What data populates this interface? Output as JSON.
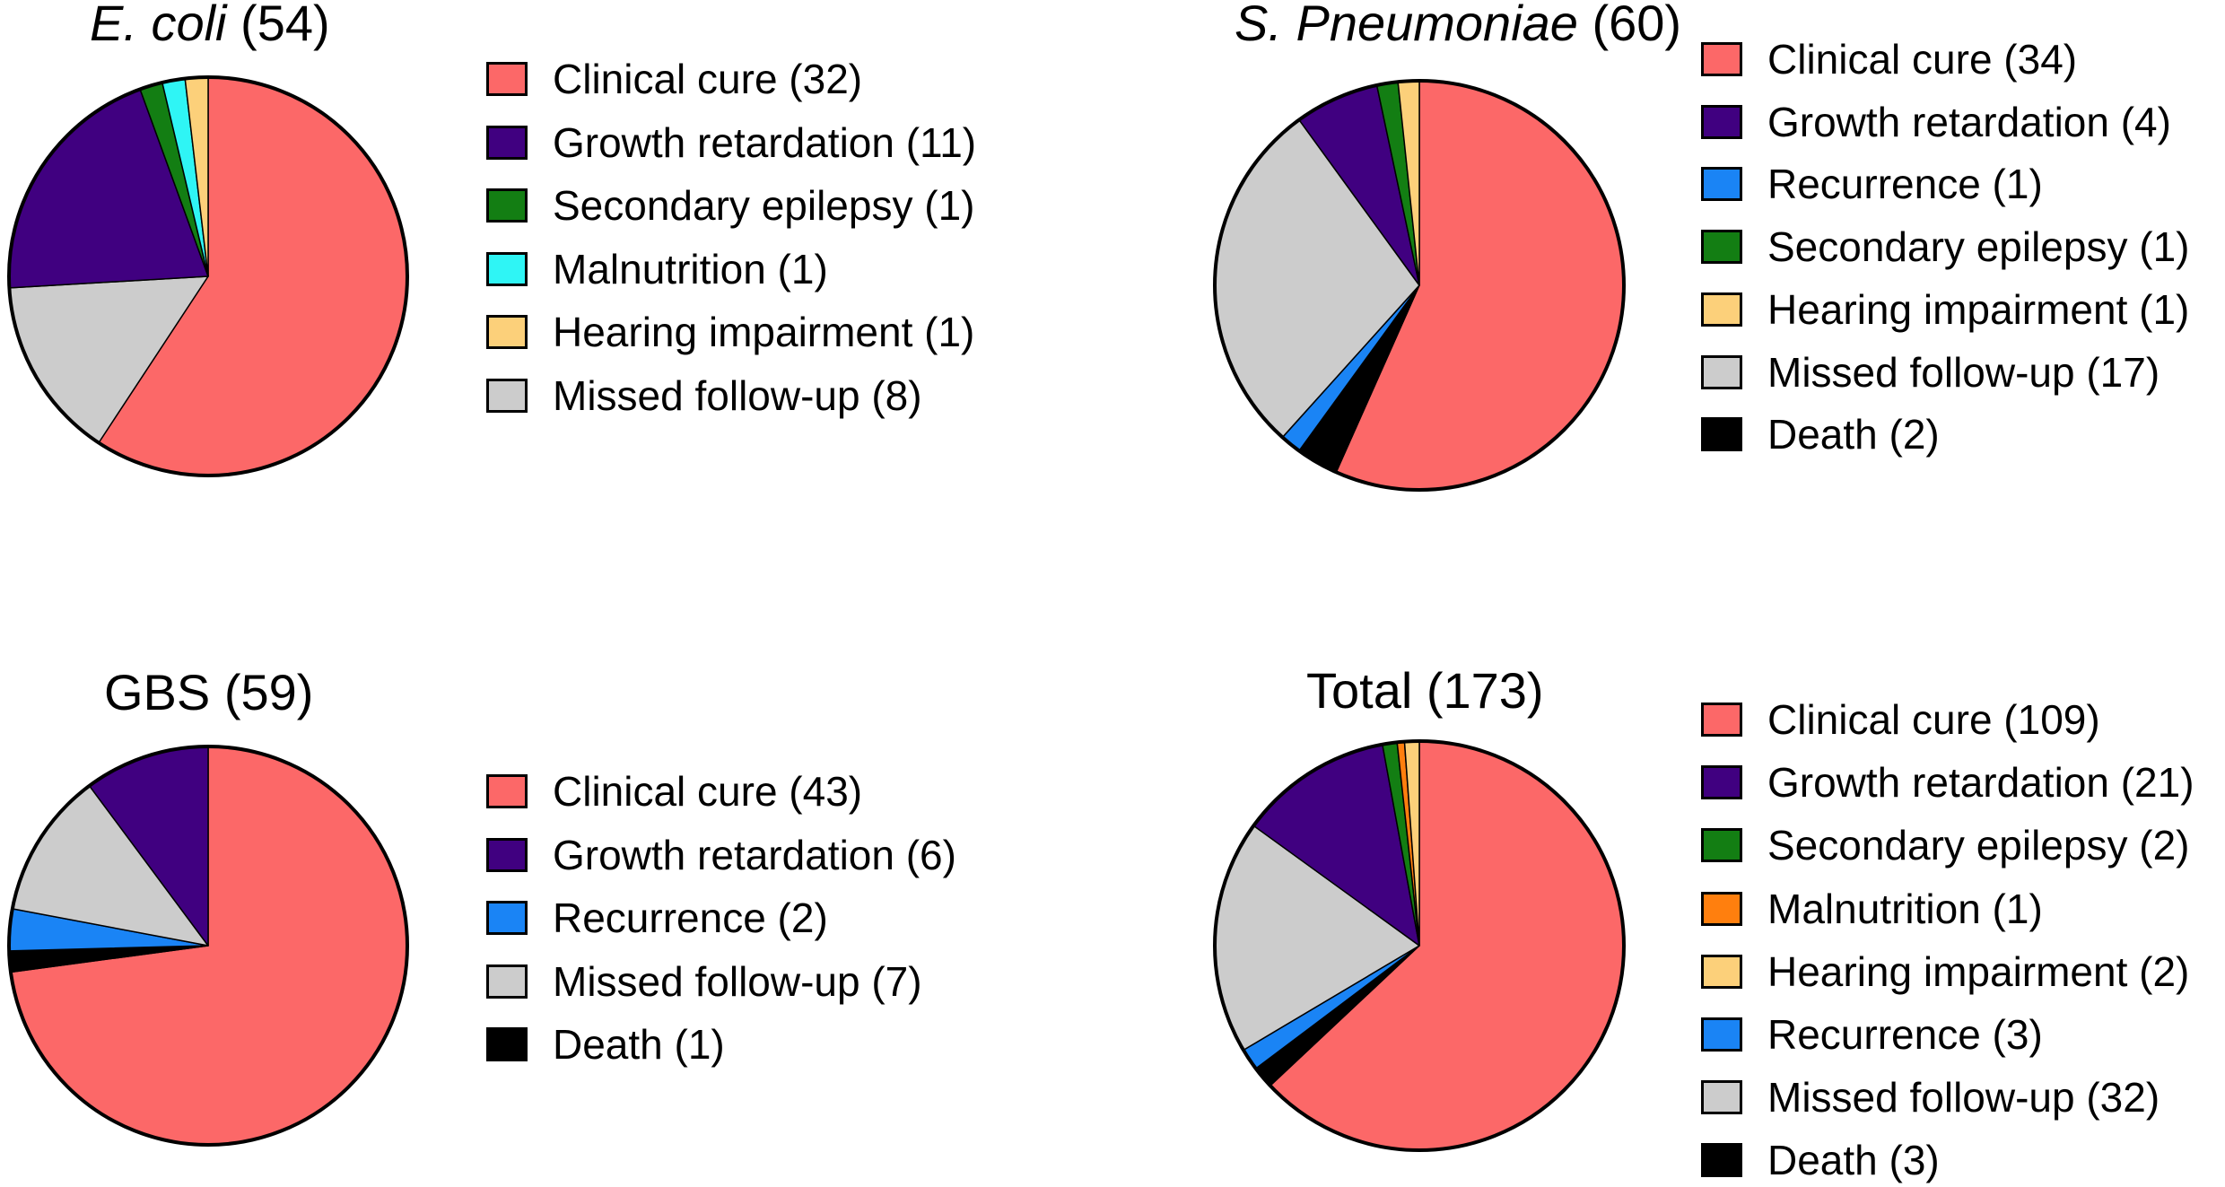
{
  "colors": {
    "clinical_cure": "#fc6868",
    "growth_retardation": "#400080",
    "secondary_epilepsy": "#137e13",
    "malnutrition_ecoli": "#2ff5f5",
    "malnutrition_total": "#ff7f0e",
    "hearing_impairment": "#fcd07a",
    "recurrence": "#1a84f5",
    "missed_follow_up": "#cccccc",
    "death": "#000000",
    "outline": "#000000"
  },
  "chart_data": [
    {
      "type": "pie",
      "title_italic": "E. coli",
      "title_rest": " (54)",
      "total": 54,
      "slices": [
        {
          "label": "Clinical cure (32)",
          "value": 32,
          "color": "#fc6868"
        },
        {
          "label": "Missed follow-up (8)",
          "value": 8,
          "color": "#cccccc"
        },
        {
          "label": "Growth retardation (11)",
          "value": 11,
          "color": "#400080"
        },
        {
          "label": "Secondary epilepsy (1)",
          "value": 1,
          "color": "#137e13"
        },
        {
          "label": "Malnutrition (1)",
          "value": 1,
          "color": "#2ff5f5"
        },
        {
          "label": "Hearing impairment (1)",
          "value": 1,
          "color": "#fcd07a"
        }
      ],
      "legend": [
        {
          "label": "Clinical cure (32)",
          "color": "#fc6868"
        },
        {
          "label": "Growth retardation (11)",
          "color": "#400080"
        },
        {
          "label": "Secondary epilepsy (1)",
          "color": "#137e13"
        },
        {
          "label": "Malnutrition (1)",
          "color": "#2ff5f5"
        },
        {
          "label": "Hearing impairment (1)",
          "color": "#fcd07a"
        },
        {
          "label": "Missed follow-up (8)",
          "color": "#cccccc"
        }
      ]
    },
    {
      "type": "pie",
      "title_italic": "S. Pneumoniae",
      "title_rest": " (60)",
      "total": 60,
      "slices": [
        {
          "label": "Clinical cure (34)",
          "value": 34,
          "color": "#fc6868"
        },
        {
          "label": "Death (2)",
          "value": 2,
          "color": "#000000"
        },
        {
          "label": "Recurrence (1)",
          "value": 1,
          "color": "#1a84f5"
        },
        {
          "label": "Missed follow-up (17)",
          "value": 17,
          "color": "#cccccc"
        },
        {
          "label": "Growth retardation (4)",
          "value": 4,
          "color": "#400080"
        },
        {
          "label": "Secondary epilepsy (1)",
          "value": 1,
          "color": "#137e13"
        },
        {
          "label": "Hearing impairment (1)",
          "value": 1,
          "color": "#fcd07a"
        }
      ],
      "legend": [
        {
          "label": "Clinical cure (34)",
          "color": "#fc6868"
        },
        {
          "label": "Growth retardation (4)",
          "color": "#400080"
        },
        {
          "label": "Recurrence (1)",
          "color": "#1a84f5"
        },
        {
          "label": "Secondary epilepsy (1)",
          "color": "#137e13"
        },
        {
          "label": "Hearing impairment (1)",
          "color": "#fcd07a"
        },
        {
          "label": "Missed follow-up (17)",
          "color": "#cccccc"
        },
        {
          "label": "Death (2)",
          "color": "#000000"
        }
      ]
    },
    {
      "type": "pie",
      "title_italic": "",
      "title_rest": "GBS (59)",
      "total": 59,
      "slices": [
        {
          "label": "Clinical cure (43)",
          "value": 43,
          "color": "#fc6868"
        },
        {
          "label": "Death (1)",
          "value": 1,
          "color": "#000000"
        },
        {
          "label": "Recurrence (2)",
          "value": 2,
          "color": "#1a84f5"
        },
        {
          "label": "Missed follow-up (7)",
          "value": 7,
          "color": "#cccccc"
        },
        {
          "label": "Growth retardation (6)",
          "value": 6,
          "color": "#400080"
        }
      ],
      "legend": [
        {
          "label": "Clinical cure (43)",
          "color": "#fc6868"
        },
        {
          "label": "Growth retardation (6)",
          "color": "#400080"
        },
        {
          "label": "Recurrence (2)",
          "color": "#1a84f5"
        },
        {
          "label": "Missed follow-up (7)",
          "color": "#cccccc"
        },
        {
          "label": "Death (1)",
          "color": "#000000"
        }
      ]
    },
    {
      "type": "pie",
      "title_italic": "",
      "title_rest": "Total (173)",
      "total": 173,
      "slices": [
        {
          "label": "Clinical cure (109)",
          "value": 109,
          "color": "#fc6868"
        },
        {
          "label": "Death (3)",
          "value": 3,
          "color": "#000000"
        },
        {
          "label": "Recurrence (3)",
          "value": 3,
          "color": "#1a84f5"
        },
        {
          "label": "Missed follow-up (32)",
          "value": 32,
          "color": "#cccccc"
        },
        {
          "label": "Growth retardation (21)",
          "value": 21,
          "color": "#400080"
        },
        {
          "label": "Secondary epilepsy (2)",
          "value": 2,
          "color": "#137e13"
        },
        {
          "label": "Malnutrition (1)",
          "value": 1,
          "color": "#ff7f0e"
        },
        {
          "label": "Hearing impairment (2)",
          "value": 2,
          "color": "#fcd07a"
        }
      ],
      "legend": [
        {
          "label": "Clinical cure (109)",
          "color": "#fc6868"
        },
        {
          "label": "Growth retardation (21)",
          "color": "#400080"
        },
        {
          "label": "Secondary epilepsy (2)",
          "color": "#137e13"
        },
        {
          "label": "Malnutrition (1)",
          "color": "#ff7f0e"
        },
        {
          "label": "Hearing impairment (2)",
          "color": "#fcd07a"
        },
        {
          "label": "Recurrence (3)",
          "color": "#1a84f5"
        },
        {
          "label": "Missed follow-up (32)",
          "color": "#cccccc"
        },
        {
          "label": "Death (3)",
          "color": "#000000"
        }
      ]
    }
  ]
}
